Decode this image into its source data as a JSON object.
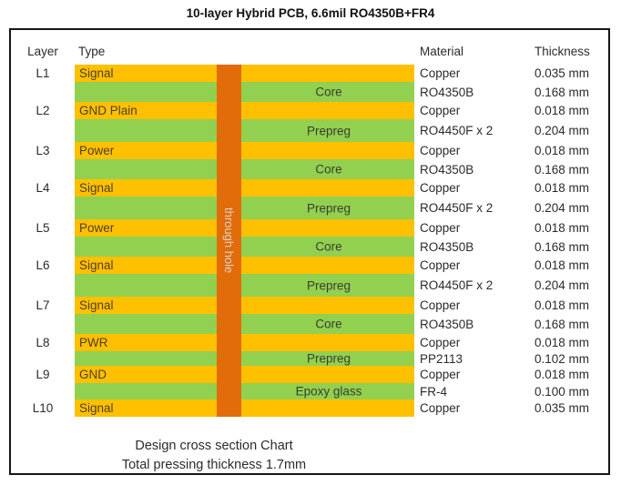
{
  "title": "10-layer Hybrid PCB, 6.6mil RO4350B+FR4",
  "columns": {
    "layer": "Layer",
    "type": "Type",
    "material": "Material",
    "thickness": "Thickness"
  },
  "through_hole_label": "through hole",
  "colors": {
    "copper": "#FFC000",
    "dielectric": "#92D050",
    "via": "#E26B0A"
  },
  "stack": [
    {
      "layer": "L1",
      "type": "Signal",
      "band": "copper",
      "material": "Copper",
      "thickness": "0.035 mm"
    },
    {
      "band": "core",
      "center": "Core",
      "material": "RO4350B",
      "thickness": "0.168 mm"
    },
    {
      "layer": "L2",
      "type": "GND Plain",
      "band": "copper",
      "material": "Copper",
      "thickness": "0.018 mm"
    },
    {
      "band": "prepreg",
      "center": "Prepreg",
      "material": "RO4450F x 2",
      "thickness": "0.204 mm"
    },
    {
      "layer": "L3",
      "type": "Power",
      "band": "copper",
      "material": "Copper",
      "thickness": "0.018 mm"
    },
    {
      "band": "core",
      "center": "Core",
      "material": "RO4350B",
      "thickness": "0.168 mm"
    },
    {
      "layer": "L4",
      "type": "Signal",
      "band": "copper",
      "material": "Copper",
      "thickness": "0.018 mm"
    },
    {
      "band": "prepreg",
      "center": "Prepreg",
      "material": "RO4450F x 2",
      "thickness": "0.204 mm"
    },
    {
      "layer": "L5",
      "type": "Power",
      "band": "copper",
      "material": "Copper",
      "thickness": "0.018 mm"
    },
    {
      "band": "core",
      "center": "Core",
      "material": "RO4350B",
      "thickness": "0.168 mm"
    },
    {
      "layer": "L6",
      "type": "Signal",
      "band": "copper",
      "material": "Copper",
      "thickness": "0.018 mm"
    },
    {
      "band": "prepreg",
      "center": "Prepreg",
      "material": "RO4450F x 2",
      "thickness": "0.204 mm"
    },
    {
      "layer": "L7",
      "type": "Signal",
      "band": "copper",
      "material": "Copper",
      "thickness": "0.018 mm"
    },
    {
      "band": "core",
      "center": "Core",
      "material": "RO4350B",
      "thickness": "0.168 mm"
    },
    {
      "layer": "L8",
      "type": "PWR",
      "band": "copper",
      "material": "Copper",
      "thickness": "0.018 mm"
    },
    {
      "band": "ppthin",
      "center": "Prepreg",
      "material": "PP2113",
      "thickness": "0.102 mm"
    },
    {
      "layer": "L9",
      "type": "GND",
      "band": "copper",
      "material": "Copper",
      "thickness": "0.018 mm"
    },
    {
      "band": "epoxy",
      "center": "Epoxy glass",
      "material": "FR-4",
      "thickness": "0.100 mm"
    },
    {
      "layer": "L10",
      "type": "Signal",
      "band": "copper",
      "material": "Copper",
      "thickness": "0.035 mm"
    }
  ],
  "footer": {
    "line1": "Design cross section Chart",
    "line2": "Total pressing thickness 1.7mm"
  }
}
